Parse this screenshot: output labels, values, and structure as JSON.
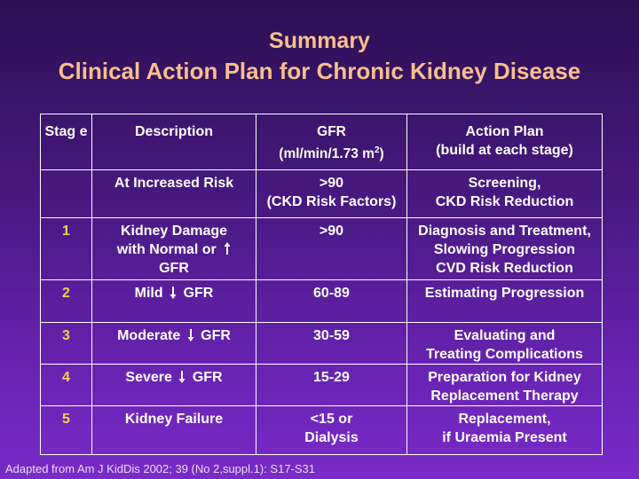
{
  "title": {
    "line1": "Summary",
    "line2": "Clinical Action Plan for Chronic Kidney Disease"
  },
  "table": {
    "headers": {
      "stage": "Stag e",
      "description": "Description",
      "gfr_line1": "GFR",
      "gfr_line2_pre": "(ml/min/1.73 m",
      "gfr_sup": "2",
      "gfr_line2_post": ")",
      "action_line1": "Action  Plan",
      "action_line2": "(build at each stage)"
    },
    "rows": [
      {
        "stage": "",
        "description": "At Increased Risk",
        "gfr_line1": ">90",
        "gfr_line2": "(CKD Risk Factors)",
        "action_line1": "Screening,",
        "action_line2": "CKD Risk Reduction"
      },
      {
        "stage": "1",
        "description_line1": "Kidney Damage",
        "description_line2": "with Normal or",
        "description_line3": "GFR",
        "gfr": ">90",
        "action_line1": "Diagnosis and Treatment,",
        "action_line2": "Slowing Progression",
        "action_line3": "CVD Risk Reduction"
      },
      {
        "stage": "2",
        "description_pre": "Mild",
        "description_post": "GFR",
        "gfr": "60-89",
        "action": "Estimating Progression"
      },
      {
        "stage": "3",
        "description_pre": "Moderate",
        "description_post": "GFR",
        "gfr": "30-59",
        "action_line1": "Evaluating and",
        "action_line2": "Treating Complications"
      },
      {
        "stage": "4",
        "description_pre": "Severe",
        "description_post": "GFR",
        "gfr": "15-29",
        "action_line1": "Preparation for Kidney",
        "action_line2": "Replacement Therapy"
      },
      {
        "stage": "5",
        "description": "Kidney Failure",
        "gfr_line1": "<15 or",
        "gfr_line2": "Dialysis",
        "action_line1": "Replacement,",
        "action_line2": "if Uraemia Present"
      }
    ]
  },
  "footnote": "Adapted from Am J KidDis 2002; 39 (No 2,suppl.1): S17-S31",
  "colors": {
    "title": "#f5c08e",
    "stage_number": "#f5d24a",
    "background_top": "#2c0f52",
    "background_bottom": "#7a2ac8"
  },
  "icons": {
    "up": "up-arrow-icon",
    "down": "down-arrow-icon"
  }
}
